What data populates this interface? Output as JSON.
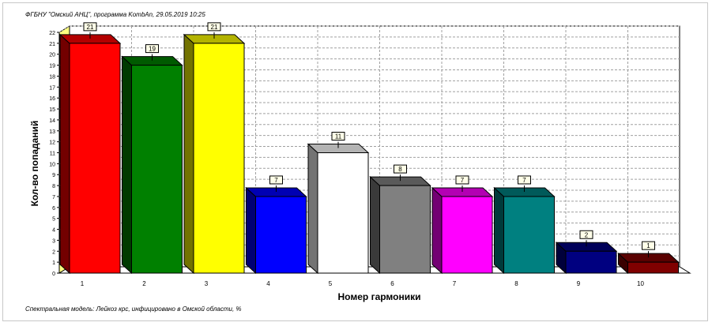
{
  "header": {
    "text": "ФГБНУ \"Омский АНЦ\", программа KombAn, 29.05.2019 10:25"
  },
  "footer": {
    "text": "Спектральная модель: Лейкоз крс, инфицировано в Омской области, %"
  },
  "chart_data": {
    "type": "bar",
    "title": "",
    "xlabel": "Номер гармоники",
    "ylabel": "Кол-во попаданий",
    "categories": [
      "1",
      "2",
      "3",
      "4",
      "5",
      "6",
      "7",
      "8",
      "9",
      "10"
    ],
    "values": [
      21,
      19,
      21,
      7,
      11,
      8,
      7,
      7,
      2,
      1
    ],
    "ylim": [
      0,
      22
    ],
    "yticks": [
      0,
      1,
      2,
      3,
      4,
      5,
      6,
      7,
      8,
      9,
      10,
      11,
      12,
      13,
      14,
      15,
      16,
      17,
      18,
      19,
      20,
      21,
      22
    ],
    "grid": true,
    "three_d": true,
    "data_labels": true,
    "colors": [
      "#ff0000",
      "#008000",
      "#ffff00",
      "#0000ff",
      "#ffffff",
      "#808080",
      "#ff00ff",
      "#008080",
      "#000080",
      "#800000"
    ],
    "wall_color": "#ffff80"
  }
}
